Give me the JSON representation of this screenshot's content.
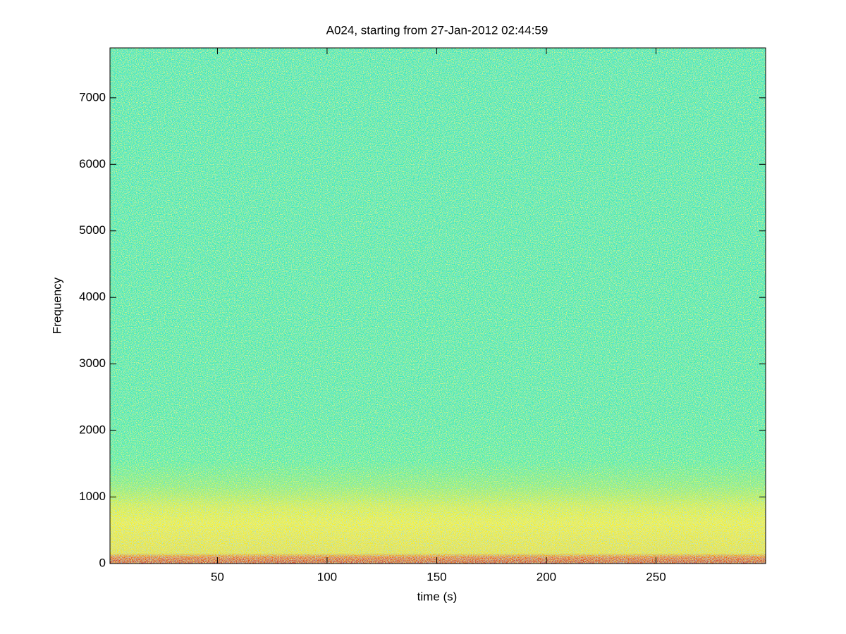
{
  "chart_data": {
    "type": "spectrogram",
    "title": "A024, starting from 27-Jan-2012 02:44:59",
    "xlabel": "time (s)",
    "ylabel": "Frequency",
    "xlim": [
      1,
      300
    ],
    "ylim": [
      0,
      7750
    ],
    "xticks": [
      50,
      100,
      150,
      200,
      250
    ],
    "yticks": [
      0,
      1000,
      2000,
      3000,
      4000,
      5000,
      6000,
      7000
    ]
  }
}
